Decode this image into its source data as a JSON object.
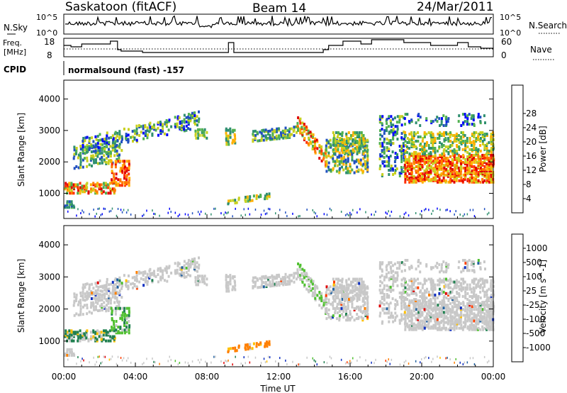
{
  "header": {
    "title": "Saskatoon (fitACF)",
    "beam": "Beam 14",
    "date": "24/Mar/2011"
  },
  "nsky_panel": {
    "left_label": "N.Sky",
    "right_label": "N.Search",
    "left_ticks": [
      "10^5",
      "10^0"
    ],
    "right_ticks": [
      "10^5",
      "10^0"
    ]
  },
  "freq_panel": {
    "left_label_1": "Freq.",
    "left_label_2": "[MHz]",
    "right_label": "Nave",
    "left_ticks": [
      "18",
      "8"
    ],
    "right_ticks": [
      "60",
      "0"
    ]
  },
  "cpid": {
    "label": "CPID",
    "value": "normalsound (fast) -157"
  },
  "chart_data": [
    {
      "type": "heatmap",
      "name_label": "Power",
      "ylabel": "Slant Range [km]",
      "xlabel": "Time UT",
      "x_ticks": [
        "00:00",
        "04:00",
        "08:00",
        "12:00",
        "16:00",
        "20:00",
        "00:00"
      ],
      "y_ticks": [
        "1000",
        "2000",
        "3000",
        "4000"
      ],
      "ylim": [
        200,
        4600
      ],
      "colorbar": {
        "label": "Power [dB]",
        "ticks": [
          "4",
          "8",
          "12",
          "16",
          "20",
          "24",
          "28"
        ],
        "colors": [
          "#0000ff",
          "#2050c0",
          "#2f8f6f",
          "#50b050",
          "#c8d020",
          "#ffb000",
          "#ff7a00",
          "#ff3000",
          "#e00000"
        ]
      }
    },
    {
      "type": "heatmap",
      "name_label": "Velocity",
      "ylabel": "Slant Range [km]",
      "xlabel": "Time UT",
      "x_ticks": [
        "00:00",
        "04:00",
        "08:00",
        "12:00",
        "16:00",
        "20:00",
        "00:00"
      ],
      "y_ticks": [
        "1000",
        "2000",
        "3000",
        "4000"
      ],
      "ylim": [
        200,
        4600
      ],
      "colorbar": {
        "label": "Velocity [m s^-1]",
        "ticks": [
          "1000",
          "500",
          "100",
          "25",
          "-25",
          "-100",
          "-500",
          "-1000"
        ],
        "colors": [
          "#1030c0",
          "#2060a0",
          "#208050",
          "#50c030",
          "#c8c8c8",
          "#ffc000",
          "#ff8000",
          "#ff4000",
          "#e00000"
        ]
      }
    }
  ],
  "x_axis_label": "Time UT",
  "colors": {
    "ground_scatter": "#c8c8c8",
    "line": "#000000"
  }
}
